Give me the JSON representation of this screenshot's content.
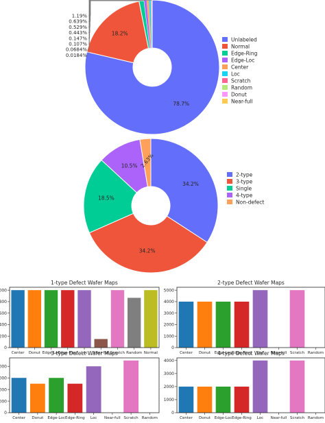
{
  "chart_data": [
    {
      "type": "pie",
      "donut": true,
      "labels": [
        "Unlabeled",
        "Normal",
        "Edge-Ring",
        "Edge-Loc",
        "Center",
        "Loc",
        "Scratch",
        "Random",
        "Donut",
        "Near-full"
      ],
      "values": [
        78.7,
        18.2,
        1.19,
        0.639,
        0.529,
        0.443,
        0.147,
        0.107,
        0.0684,
        0.0184
      ],
      "value_labels": [
        "78.7%",
        "18.2%",
        "1.19%",
        "0.639%",
        "0.529%",
        "0.443%",
        "0.147%",
        "0.107%",
        "0.0684%",
        "0.0184%"
      ],
      "colors": [
        "#636efa",
        "#ef553b",
        "#00cc96",
        "#ab63fa",
        "#ffa15a",
        "#19d3f3",
        "#ff6692",
        "#b6e880",
        "#ff97ff",
        "#fecb52"
      ],
      "legend_position": "right"
    },
    {
      "type": "pie",
      "donut": true,
      "labels": [
        "2-type",
        "3-type",
        "Single",
        "4-type",
        "Non-defect"
      ],
      "values": [
        34.2,
        34.2,
        18.5,
        10.5,
        2.63
      ],
      "value_labels": [
        "34.2%",
        "34.2%",
        "18.5%",
        "10.5%",
        "2.63%"
      ],
      "colors": [
        "#636efa",
        "#ef553b",
        "#00cc96",
        "#ab63fa",
        "#ffa15a"
      ],
      "legend_position": "right"
    },
    {
      "type": "bar",
      "title": "1-type Defect Wafer Maps",
      "categories": [
        "Center",
        "Donut",
        "Edge-Loc",
        "Edge-Ring",
        "Loc",
        "Near-full",
        "Scratch",
        "Random",
        "Normal"
      ],
      "values": [
        1000,
        1000,
        1000,
        1000,
        1000,
        149,
        1000,
        866,
        1000
      ],
      "colors": [
        "#1f77b4",
        "#ff7f0e",
        "#2ca02c",
        "#d62728",
        "#9467bd",
        "#8c564b",
        "#e377c2",
        "#7f7f7f",
        "#bcbd22"
      ],
      "ylim": [
        0,
        1050
      ],
      "yticks": [
        0,
        200,
        400,
        600,
        800,
        1000
      ],
      "ytick_labels": [
        "0",
        "200",
        "400",
        "600",
        "800",
        "1000"
      ]
    },
    {
      "type": "bar",
      "title": "2-type Defect Wafer Maps",
      "categories": [
        "Center",
        "Donut",
        "Edge-Loc",
        "Edge-Ring",
        "Loc",
        "Near-full",
        "Scratch",
        "Random"
      ],
      "values": [
        4000,
        4000,
        4000,
        4000,
        5000,
        0,
        5000,
        0
      ],
      "colors": [
        "#1f77b4",
        "#ff7f0e",
        "#2ca02c",
        "#d62728",
        "#9467bd",
        "#8c564b",
        "#e377c2",
        "#7f7f7f"
      ],
      "ylim": [
        0,
        5250
      ],
      "yticks": [
        0,
        1000,
        2000,
        3000,
        4000,
        5000
      ],
      "ytick_labels": [
        "0",
        "1000",
        "2000",
        "3000",
        "4000",
        "5000"
      ]
    },
    {
      "type": "bar",
      "title": "3-type Defect Wafer Maps",
      "categories": [
        "Center",
        "Donut",
        "Edge-Loc",
        "Edge-Ring",
        "Loc",
        "Near-full",
        "Scratch",
        "Random"
      ],
      "values": [
        6000,
        5000,
        6000,
        5000,
        8000,
        0,
        9000,
        0
      ],
      "colors": [
        "#1f77b4",
        "#ff7f0e",
        "#2ca02c",
        "#d62728",
        "#9467bd",
        "#8c564b",
        "#e377c2",
        "#7f7f7f"
      ],
      "ylim": [
        0,
        9450
      ],
      "yticks": [
        0,
        2000,
        4000,
        6000,
        8000
      ],
      "ytick_labels": [
        "0",
        "2000",
        "4000",
        "6000",
        "8000"
      ]
    },
    {
      "type": "bar",
      "title": "4-type Defect Wafer Maps",
      "categories": [
        "Center",
        "Donut",
        "Edge-Loc",
        "Edge-Ring",
        "Loc",
        "Near-full",
        "Scratch",
        "Random"
      ],
      "values": [
        2000,
        2000,
        2000,
        2000,
        4000,
        0,
        4000,
        0
      ],
      "colors": [
        "#1f77b4",
        "#ff7f0e",
        "#2ca02c",
        "#d62728",
        "#9467bd",
        "#8c564b",
        "#e377c2",
        "#7f7f7f"
      ],
      "ylim": [
        0,
        4200
      ],
      "yticks": [
        0,
        1000,
        2000,
        3000,
        4000
      ],
      "ytick_labels": [
        "0",
        "1000",
        "2000",
        "3000",
        "4000"
      ]
    }
  ]
}
